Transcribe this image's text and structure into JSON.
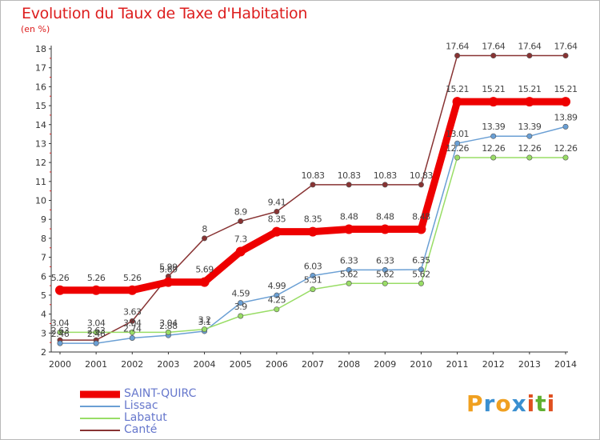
{
  "title": "Evolution du Taux de Taxe d'Habitation",
  "unit_label": "(en %)",
  "logo": {
    "letters": [
      "P",
      "r",
      "o",
      "x",
      "i",
      "t",
      "i"
    ],
    "colors": [
      "#f0a020",
      "#3a8fd0",
      "#f0a020",
      "#3a8fd0",
      "#e05020",
      "#60b030",
      "#e05020"
    ]
  },
  "chart_data": {
    "type": "line",
    "x": [
      "2000",
      "2001",
      "2002",
      "2003",
      "2004",
      "2005",
      "2006",
      "2007",
      "2008",
      "2009",
      "2010",
      "2011",
      "2012",
      "2013",
      "2014"
    ],
    "ylim": [
      2,
      18
    ],
    "yticks": [
      2,
      3,
      4,
      5,
      6,
      7,
      8,
      9,
      10,
      11,
      12,
      13,
      14,
      15,
      16,
      17,
      18
    ],
    "grid": false,
    "legend_position": "bottom-left",
    "series": [
      {
        "name": "SAINT-QUIRC",
        "color": "#ee0000",
        "width": 9,
        "values": [
          5.26,
          5.26,
          5.26,
          5.69,
          5.69,
          7.3,
          8.35,
          8.35,
          8.48,
          8.48,
          8.48,
          15.21,
          15.21,
          15.21,
          15.21
        ],
        "labels": [
          "5.26",
          "5.26",
          "5.26",
          "5.69",
          "5.69",
          "7.3",
          "8.35",
          "8.35",
          "8.48",
          "8.48",
          "8.48",
          "15.21",
          "15.21",
          "15.21",
          "15.21"
        ]
      },
      {
        "name": "Lissac",
        "color": "#6a9fd4",
        "width": 1.5,
        "values": [
          2.46,
          2.46,
          2.74,
          2.88,
          3.1,
          4.59,
          4.99,
          6.03,
          6.33,
          6.33,
          6.35,
          13.01,
          13.39,
          13.39,
          13.89
        ],
        "labels": [
          "2.46",
          "2.46",
          "2.74",
          "2.88",
          "3.1",
          "4.59",
          "4.99",
          "6.03",
          "6.33",
          "6.33",
          "6.35",
          "13.01",
          "13.39",
          "13.39",
          "13.89"
        ]
      },
      {
        "name": "Labatut",
        "color": "#99dd66",
        "width": 1.5,
        "values": [
          3.04,
          3.04,
          3.04,
          3.04,
          3.2,
          3.9,
          4.25,
          5.31,
          5.62,
          5.62,
          5.62,
          12.26,
          12.26,
          12.26,
          12.26
        ],
        "labels": [
          "3.04",
          "3.04",
          "3.04",
          "3.04",
          "3.2",
          "3.9",
          "4.25",
          "5.31",
          "5.62",
          "5.62",
          "5.62",
          "12.26",
          "12.26",
          "12.26",
          "12.26"
        ]
      },
      {
        "name": "Canté",
        "color": "#883333",
        "width": 1.5,
        "values": [
          2.63,
          2.63,
          3.63,
          5.99,
          8,
          8.9,
          9.41,
          10.83,
          10.83,
          10.83,
          10.83,
          17.64,
          17.64,
          17.64,
          17.64
        ],
        "labels": [
          "2.63",
          "2.63",
          "3.63",
          "5.99",
          "8",
          "8.9",
          "9.41",
          "10.83",
          "10.83",
          "10.83",
          "10.83",
          "17.64",
          "17.64",
          "17.64",
          "17.64"
        ]
      }
    ]
  }
}
